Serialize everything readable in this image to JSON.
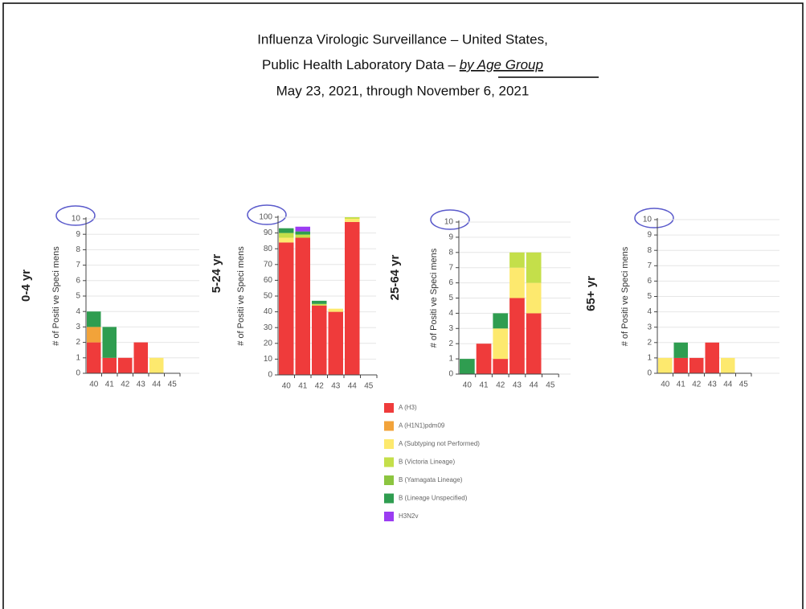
{
  "header": {
    "line1": "Influenza Virologic Surveillance – United States,",
    "line2": "Public Health Laboratory Data – ",
    "line2_emph": "by Age Group",
    "line3": "May 23, 2021, through November 6, 2021"
  },
  "chart_data": [
    {
      "type": "bar",
      "stacked": true,
      "title": "0-4 yr",
      "y_label": "# of Positi ve Speci mens",
      "categories": [
        "40",
        "41",
        "42",
        "43",
        "44",
        "45"
      ],
      "ylim": [
        0,
        10
      ],
      "yticks": [
        0,
        1,
        2,
        3,
        4,
        5,
        6,
        7,
        8,
        9,
        10
      ],
      "grid": true,
      "series": [
        {
          "name": "A (H3)",
          "color": "#ef3b3b",
          "values": [
            2,
            1,
            1,
            2,
            0,
            0
          ]
        },
        {
          "name": "A (H1N1)pdm09",
          "color": "#f2a33a",
          "values": [
            1,
            0,
            0,
            0,
            0,
            0
          ]
        },
        {
          "name": "A (Subtyping not Performed)",
          "color": "#fde96e",
          "values": [
            0,
            0,
            0,
            0,
            1,
            0
          ]
        },
        {
          "name": "B (Victoria Lineage)",
          "color": "#c4df4a",
          "values": [
            0,
            0,
            0,
            0,
            0,
            0
          ]
        },
        {
          "name": "B (Yamagata Lineage)",
          "color": "#8cc540",
          "values": [
            0,
            0,
            0,
            0,
            0,
            0
          ]
        },
        {
          "name": "B (Lineage Unspecified)",
          "color": "#2f9d50",
          "values": [
            1,
            2,
            0,
            0,
            0,
            0
          ]
        },
        {
          "name": "H3N2v",
          "color": "#9b3cf2",
          "values": [
            0,
            0,
            0,
            0,
            0,
            0
          ]
        }
      ]
    },
    {
      "type": "bar",
      "stacked": true,
      "title": "5-24 yr",
      "y_label": "# of Positi ve Speci mens",
      "categories": [
        "40",
        "41",
        "42",
        "43",
        "44",
        "45"
      ],
      "ylim": [
        0,
        100
      ],
      "yticks": [
        0,
        10,
        20,
        30,
        40,
        50,
        60,
        70,
        80,
        90,
        100
      ],
      "grid": true,
      "series": [
        {
          "name": "A (H3)",
          "color": "#ef3b3b",
          "values": [
            84,
            87,
            44,
            40,
            97,
            0
          ]
        },
        {
          "name": "A (H1N1)pdm09",
          "color": "#f2a33a",
          "values": [
            0,
            0,
            0,
            0,
            0,
            0
          ]
        },
        {
          "name": "A (Subtyping not Performed)",
          "color": "#fde96e",
          "values": [
            3,
            0,
            0,
            2,
            2,
            0
          ]
        },
        {
          "name": "B (Victoria Lineage)",
          "color": "#c4df4a",
          "values": [
            3,
            2,
            1,
            0,
            1,
            0
          ]
        },
        {
          "name": "B (Yamagata Lineage)",
          "color": "#8cc540",
          "values": [
            0,
            0,
            0,
            0,
            0,
            0
          ]
        },
        {
          "name": "B (Lineage Unspecified)",
          "color": "#2f9d50",
          "values": [
            3,
            2,
            2,
            0,
            0,
            0
          ]
        },
        {
          "name": "H3N2v",
          "color": "#9b3cf2",
          "values": [
            0,
            3,
            0,
            0,
            0,
            0
          ]
        }
      ]
    },
    {
      "type": "bar",
      "stacked": true,
      "title": "25-64 yr",
      "y_label": "# of Positi ve Speci mens",
      "categories": [
        "40",
        "41",
        "42",
        "43",
        "44",
        "45"
      ],
      "ylim": [
        0,
        10
      ],
      "yticks": [
        0,
        1,
        2,
        3,
        4,
        5,
        6,
        7,
        8,
        9,
        10
      ],
      "grid": true,
      "series": [
        {
          "name": "A (H3)",
          "color": "#ef3b3b",
          "values": [
            0,
            2,
            1,
            5,
            4,
            0
          ]
        },
        {
          "name": "A (H1N1)pdm09",
          "color": "#f2a33a",
          "values": [
            0,
            0,
            0,
            0,
            0,
            0
          ]
        },
        {
          "name": "A (Subtyping not Performed)",
          "color": "#fde96e",
          "values": [
            0,
            0,
            2,
            2,
            2,
            0
          ]
        },
        {
          "name": "B (Victoria Lineage)",
          "color": "#c4df4a",
          "values": [
            0,
            0,
            0,
            1,
            2,
            0
          ]
        },
        {
          "name": "B (Yamagata Lineage)",
          "color": "#8cc540",
          "values": [
            0,
            0,
            0,
            0,
            0,
            0
          ]
        },
        {
          "name": "B (Lineage Unspecified)",
          "color": "#2f9d50",
          "values": [
            1,
            0,
            1,
            0,
            0,
            0
          ]
        },
        {
          "name": "H3N2v",
          "color": "#9b3cf2",
          "values": [
            0,
            0,
            0,
            0,
            0,
            0
          ]
        }
      ]
    },
    {
      "type": "bar",
      "stacked": true,
      "title": "65+ yr",
      "y_label": "# of Positi ve Speci mens",
      "categories": [
        "40",
        "41",
        "42",
        "43",
        "44",
        "45"
      ],
      "ylim": [
        0,
        10
      ],
      "yticks": [
        0,
        1,
        2,
        3,
        4,
        5,
        6,
        7,
        8,
        9,
        10
      ],
      "grid": true,
      "series": [
        {
          "name": "A (H3)",
          "color": "#ef3b3b",
          "values": [
            0,
            1,
            1,
            2,
            0,
            0
          ]
        },
        {
          "name": "A (H1N1)pdm09",
          "color": "#f2a33a",
          "values": [
            0,
            0,
            0,
            0,
            0,
            0
          ]
        },
        {
          "name": "A (Subtyping not Performed)",
          "color": "#fde96e",
          "values": [
            1,
            0,
            0,
            0,
            1,
            0
          ]
        },
        {
          "name": "B (Victoria Lineage)",
          "color": "#c4df4a",
          "values": [
            0,
            0,
            0,
            0,
            0,
            0
          ]
        },
        {
          "name": "B (Yamagata Lineage)",
          "color": "#8cc540",
          "values": [
            0,
            0,
            0,
            0,
            0,
            0
          ]
        },
        {
          "name": "B (Lineage Unspecified)",
          "color": "#2f9d50",
          "values": [
            0,
            1,
            0,
            0,
            0,
            0
          ]
        },
        {
          "name": "H3N2v",
          "color": "#9b3cf2",
          "values": [
            0,
            0,
            0,
            0,
            0,
            0
          ]
        }
      ]
    }
  ]
}
